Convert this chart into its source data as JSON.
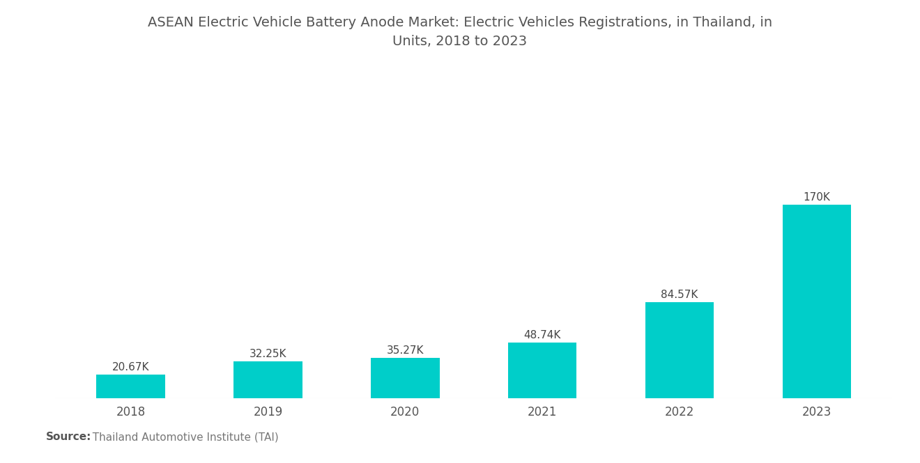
{
  "title_line1": "ASEAN Electric Vehicle Battery Anode Market: Electric Vehicles Registrations, in Thailand, in",
  "title_line2": "Units, 2018 to 2023",
  "categories": [
    "2018",
    "2019",
    "2020",
    "2021",
    "2022",
    "2023"
  ],
  "values": [
    20670,
    32250,
    35270,
    48740,
    84570,
    170000
  ],
  "labels": [
    "20.67K",
    "32.25K",
    "35.27K",
    "48.74K",
    "84.57K",
    "170K"
  ],
  "bar_color": "#00CEC9",
  "background_color": "#ffffff",
  "source_bold": "Source:",
  "source_rest": "  Thailand Automotive Institute (TAI)",
  "title_fontsize": 14,
  "label_fontsize": 11,
  "tick_fontsize": 12,
  "source_fontsize": 11,
  "ylim": [
    0,
    220000
  ]
}
